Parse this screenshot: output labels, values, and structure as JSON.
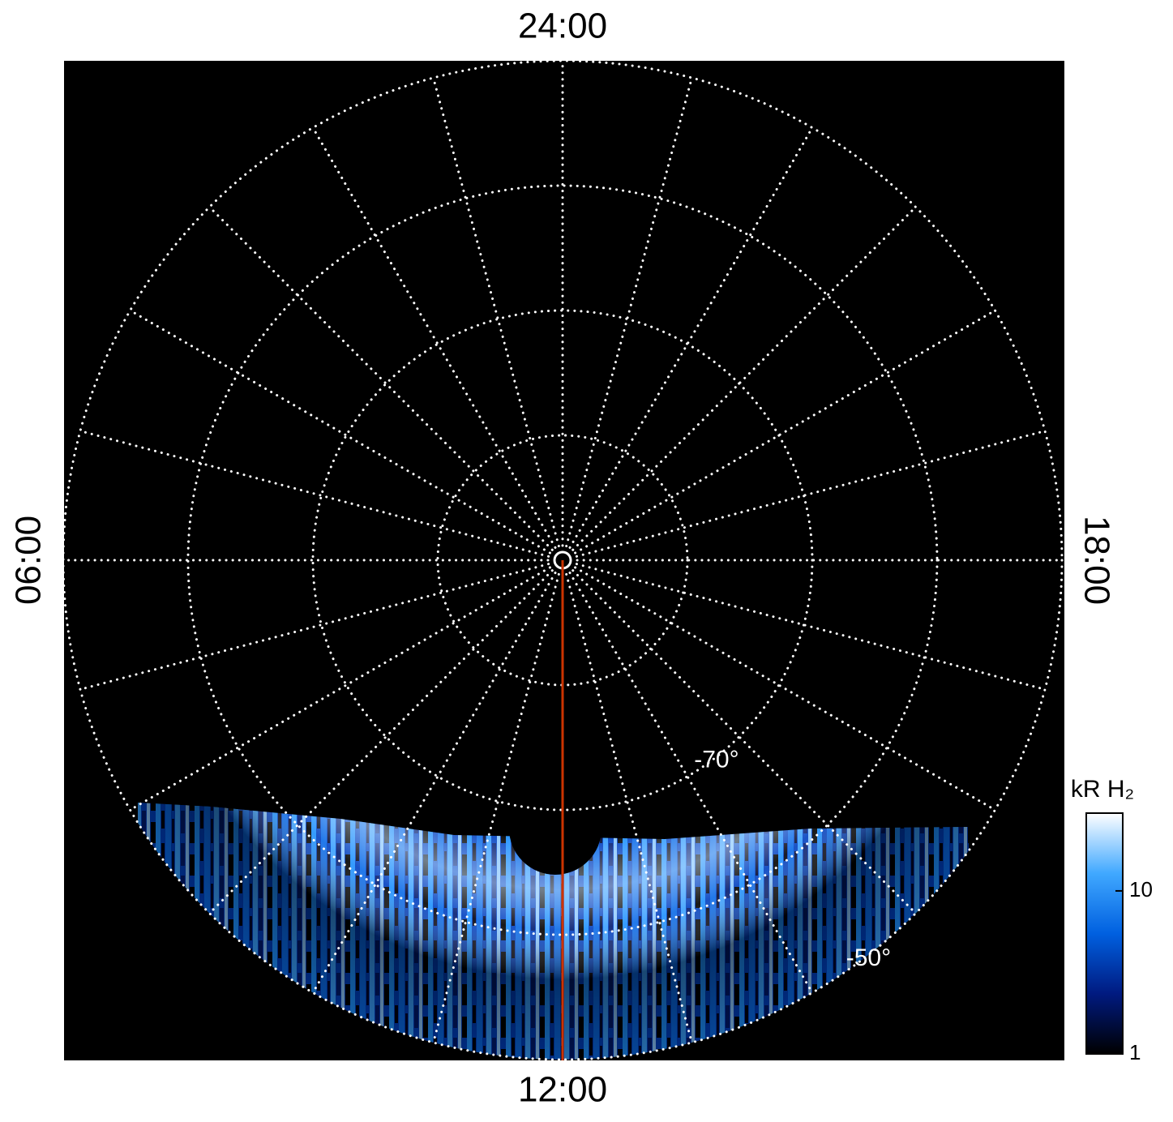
{
  "chart_data": {
    "type": "polar",
    "xlim": [
      0,
      24
    ],
    "grid_step_hours": 1,
    "xticks": [
      {
        "value": 24,
        "label": "24:00"
      },
      {
        "value": 6,
        "label": "06:00"
      },
      {
        "value": 12,
        "label": "12:00"
      },
      {
        "value": 18,
        "label": "18:00"
      }
    ],
    "ylim": [
      -90,
      -50
    ],
    "ygrid": [
      -80,
      -70,
      -60,
      -50
    ],
    "ytick_labels": [
      {
        "value": -70,
        "label": "-70°"
      },
      {
        "value": -50,
        "label": "-50°"
      }
    ],
    "colorbar": {
      "label": "kR H₂",
      "lim": [
        1,
        30
      ],
      "log": true,
      "ticks": [
        1,
        10
      ],
      "colors": [
        "#000000",
        "#001a80",
        "#0060e0",
        "#40a8ff",
        "#ffffff"
      ]
    }
  }
}
